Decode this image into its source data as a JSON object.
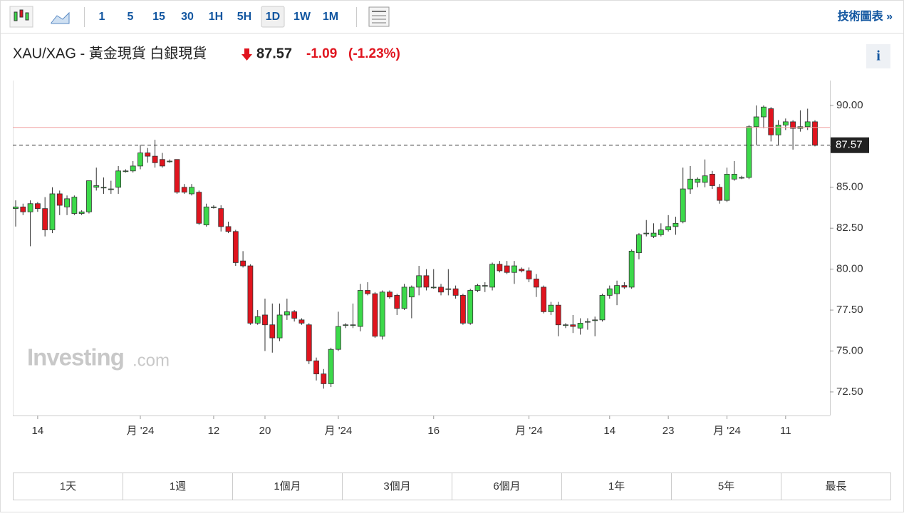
{
  "toolbar": {
    "intervals": [
      "1",
      "5",
      "15",
      "30",
      "1H",
      "5H",
      "1D",
      "1W",
      "1M"
    ],
    "active_interval": "1D",
    "link": "技術圖表 »"
  },
  "quote": {
    "name": "XAU/XAG - 黃金現貨 白銀現貨",
    "last": 87.57,
    "change": -1.09,
    "change_pct": "(-1.23%)"
  },
  "watermark": {
    "brand": "Investing",
    "suffix": ".com"
  },
  "ranges": [
    "1天",
    "1週",
    "1個月",
    "3個月",
    "6個月",
    "1年",
    "5年",
    "最長"
  ],
  "chart_data": {
    "type": "candlestick",
    "up_color": "#3cd94a",
    "down_color": "#e0141e",
    "prev_close": 88.66,
    "ylim": [
      71.06,
      91.52
    ],
    "yticks": [
      {
        "value": 72.5,
        "label": "72.50"
      },
      {
        "value": 75,
        "label": "75.00"
      },
      {
        "value": 77.5,
        "label": "77.50"
      },
      {
        "value": 80,
        "label": "80.00"
      },
      {
        "value": 82.5,
        "label": "82.50"
      },
      {
        "value": 85,
        "label": "85.00"
      },
      {
        "value": 87.5,
        "label": "87.50"
      },
      {
        "value": 90,
        "label": "90.00"
      }
    ],
    "categories": [
      null,
      null,
      null,
      "14",
      null,
      null,
      null,
      null,
      null,
      null,
      null,
      null,
      null,
      null,
      null,
      null,
      null,
      "月 '24",
      null,
      null,
      null,
      null,
      null,
      null,
      null,
      null,
      null,
      "12",
      null,
      null,
      null,
      null,
      null,
      null,
      "20",
      null,
      null,
      null,
      null,
      null,
      null,
      null,
      null,
      null,
      "月 '24",
      null,
      null,
      null,
      null,
      null,
      null,
      null,
      null,
      null,
      null,
      null,
      null,
      "16",
      null,
      null,
      null,
      null,
      null,
      null,
      null,
      null,
      null,
      null,
      null,
      null,
      "月 '24",
      null,
      null,
      null,
      null,
      null,
      null,
      null,
      null,
      null,
      null,
      "14",
      null,
      null,
      null,
      null,
      null,
      null,
      null,
      "23",
      null,
      null,
      null,
      null,
      null,
      null,
      null,
      "月 '24",
      null,
      null,
      null,
      null,
      null,
      null,
      null,
      "11",
      null,
      null,
      null,
      null
    ],
    "ohlc": [
      [
        83.7,
        84.2,
        82.6,
        83.8
      ],
      [
        83.8,
        84.0,
        83.3,
        83.5
      ],
      [
        83.5,
        84.2,
        81.4,
        84.0
      ],
      [
        84.0,
        84.1,
        83.5,
        83.7
      ],
      [
        83.7,
        84.4,
        82.0,
        82.4
      ],
      [
        82.4,
        85.0,
        82.2,
        84.6
      ],
      [
        84.6,
        84.8,
        83.3,
        83.9
      ],
      [
        83.8,
        84.5,
        83.3,
        84.3
      ],
      [
        83.4,
        84.5,
        83.3,
        84.4
      ],
      [
        83.4,
        83.6,
        83.3,
        83.5
      ],
      [
        83.5,
        85.4,
        83.4,
        85.4
      ],
      [
        85.0,
        86.2,
        84.8,
        85.1
      ],
      [
        85.0,
        85.6,
        84.6,
        85.0
      ],
      [
        84.9,
        85.4,
        84.6,
        84.9
      ],
      [
        85.0,
        86.3,
        84.6,
        86.0
      ],
      [
        86.0,
        86.1,
        85.9,
        86.0
      ],
      [
        86.0,
        86.6,
        85.9,
        86.3
      ],
      [
        86.3,
        87.6,
        86.1,
        87.1
      ],
      [
        87.1,
        87.4,
        86.5,
        86.9
      ],
      [
        86.9,
        87.9,
        86.2,
        86.5
      ],
      [
        86.7,
        87.1,
        86.2,
        86.3
      ],
      [
        86.6,
        86.7,
        86.5,
        86.6
      ],
      [
        86.7,
        86.7,
        84.6,
        84.7
      ],
      [
        85.0,
        85.2,
        84.6,
        84.7
      ],
      [
        84.6,
        85.2,
        84.5,
        85.0
      ],
      [
        84.7,
        84.8,
        82.7,
        82.8
      ],
      [
        82.7,
        84.0,
        82.6,
        83.8
      ],
      [
        83.8,
        83.9,
        83.7,
        83.8
      ],
      [
        83.7,
        83.9,
        82.3,
        82.6
      ],
      [
        82.6,
        82.9,
        82.2,
        82.3
      ],
      [
        82.3,
        82.4,
        80.2,
        80.4
      ],
      [
        80.5,
        81.1,
        80.1,
        80.2
      ],
      [
        80.2,
        80.3,
        76.6,
        76.7
      ],
      [
        76.7,
        77.5,
        76.6,
        77.1
      ],
      [
        77.2,
        78.2,
        75.0,
        76.6
      ],
      [
        76.6,
        77.9,
        74.9,
        75.8
      ],
      [
        75.8,
        77.9,
        75.6,
        77.2
      ],
      [
        77.2,
        78.2,
        76.9,
        77.4
      ],
      [
        77.4,
        77.5,
        76.8,
        77.0
      ],
      [
        76.9,
        77.0,
        76.6,
        76.7
      ],
      [
        76.6,
        76.7,
        74.2,
        74.4
      ],
      [
        74.4,
        74.6,
        73.2,
        73.6
      ],
      [
        73.6,
        73.9,
        72.7,
        73.0
      ],
      [
        73.0,
        75.2,
        72.8,
        75.1
      ],
      [
        75.1,
        77.4,
        75.0,
        76.5
      ],
      [
        76.6,
        76.7,
        76.4,
        76.6
      ],
      [
        76.6,
        77.9,
        76.4,
        76.6
      ],
      [
        76.5,
        79.1,
        76.2,
        78.7
      ],
      [
        78.7,
        79.2,
        78.4,
        78.5
      ],
      [
        78.5,
        78.6,
        75.8,
        75.9
      ],
      [
        75.9,
        78.7,
        75.7,
        78.6
      ],
      [
        78.6,
        78.7,
        78.2,
        78.3
      ],
      [
        78.4,
        78.5,
        77.2,
        77.6
      ],
      [
        77.6,
        79.1,
        77.5,
        78.9
      ],
      [
        78.3,
        79.0,
        77.0,
        78.9
      ],
      [
        78.9,
        80.2,
        78.4,
        79.6
      ],
      [
        79.6,
        80.0,
        78.7,
        78.9
      ],
      [
        78.9,
        80.0,
        78.8,
        78.9
      ],
      [
        78.9,
        79.1,
        78.4,
        78.6
      ],
      [
        78.8,
        80.0,
        78.4,
        78.8
      ],
      [
        78.8,
        79.0,
        78.2,
        78.4
      ],
      [
        78.4,
        78.5,
        76.6,
        76.7
      ],
      [
        76.7,
        78.8,
        76.6,
        78.7
      ],
      [
        78.7,
        79.1,
        78.6,
        79.0
      ],
      [
        79.0,
        79.2,
        78.6,
        79.0
      ],
      [
        78.9,
        80.4,
        78.7,
        80.3
      ],
      [
        80.3,
        80.5,
        79.8,
        79.9
      ],
      [
        80.2,
        80.5,
        79.7,
        79.8
      ],
      [
        79.8,
        80.5,
        79.1,
        80.2
      ],
      [
        80.0,
        80.1,
        79.8,
        79.9
      ],
      [
        79.9,
        80.1,
        79.2,
        79.4
      ],
      [
        79.4,
        79.7,
        78.3,
        78.9
      ],
      [
        78.9,
        79.0,
        77.3,
        77.4
      ],
      [
        77.4,
        78.0,
        77.2,
        77.8
      ],
      [
        77.8,
        78.0,
        75.9,
        76.6
      ],
      [
        76.6,
        76.7,
        76.4,
        76.6
      ],
      [
        76.6,
        77.2,
        76.1,
        76.5
      ],
      [
        76.4,
        77.0,
        76.0,
        76.7
      ],
      [
        76.8,
        77.0,
        76.3,
        76.8
      ],
      [
        76.9,
        77.1,
        75.9,
        76.9
      ],
      [
        76.9,
        78.5,
        76.8,
        78.4
      ],
      [
        78.4,
        79.0,
        78.2,
        78.8
      ],
      [
        78.5,
        79.3,
        77.8,
        79.0
      ],
      [
        79.0,
        79.2,
        78.8,
        78.9
      ],
      [
        78.9,
        81.2,
        78.8,
        81.1
      ],
      [
        81.0,
        82.2,
        80.6,
        82.1
      ],
      [
        82.2,
        83.0,
        82.0,
        82.2
      ],
      [
        82.0,
        82.8,
        81.9,
        82.2
      ],
      [
        82.1,
        82.8,
        82.0,
        82.4
      ],
      [
        82.4,
        83.3,
        82.3,
        82.6
      ],
      [
        82.6,
        83.2,
        82.1,
        82.8
      ],
      [
        82.9,
        86.2,
        82.8,
        84.9
      ],
      [
        84.9,
        86.3,
        84.6,
        85.5
      ],
      [
        85.3,
        85.6,
        85.0,
        85.5
      ],
      [
        85.3,
        86.7,
        85.0,
        85.7
      ],
      [
        85.8,
        86.0,
        84.9,
        85.1
      ],
      [
        85.0,
        85.2,
        84.0,
        84.2
      ],
      [
        84.2,
        86.2,
        84.1,
        85.8
      ],
      [
        85.5,
        86.6,
        85.4,
        85.8
      ],
      [
        85.6,
        85.7,
        85.5,
        85.6
      ],
      [
        85.6,
        88.8,
        85.5,
        88.7
      ],
      [
        88.7,
        90.0,
        87.6,
        89.3
      ],
      [
        89.3,
        90.0,
        88.6,
        89.9
      ],
      [
        89.8,
        89.9,
        87.8,
        88.2
      ],
      [
        88.2,
        89.1,
        87.6,
        88.8
      ],
      [
        88.8,
        89.2,
        88.5,
        89.0
      ],
      [
        89.0,
        89.1,
        87.3,
        88.6
      ],
      [
        88.6,
        89.7,
        88.4,
        88.7
      ],
      [
        88.7,
        89.8,
        88.5,
        89.0
      ],
      [
        89.0,
        89.1,
        87.5,
        87.57
      ]
    ]
  }
}
